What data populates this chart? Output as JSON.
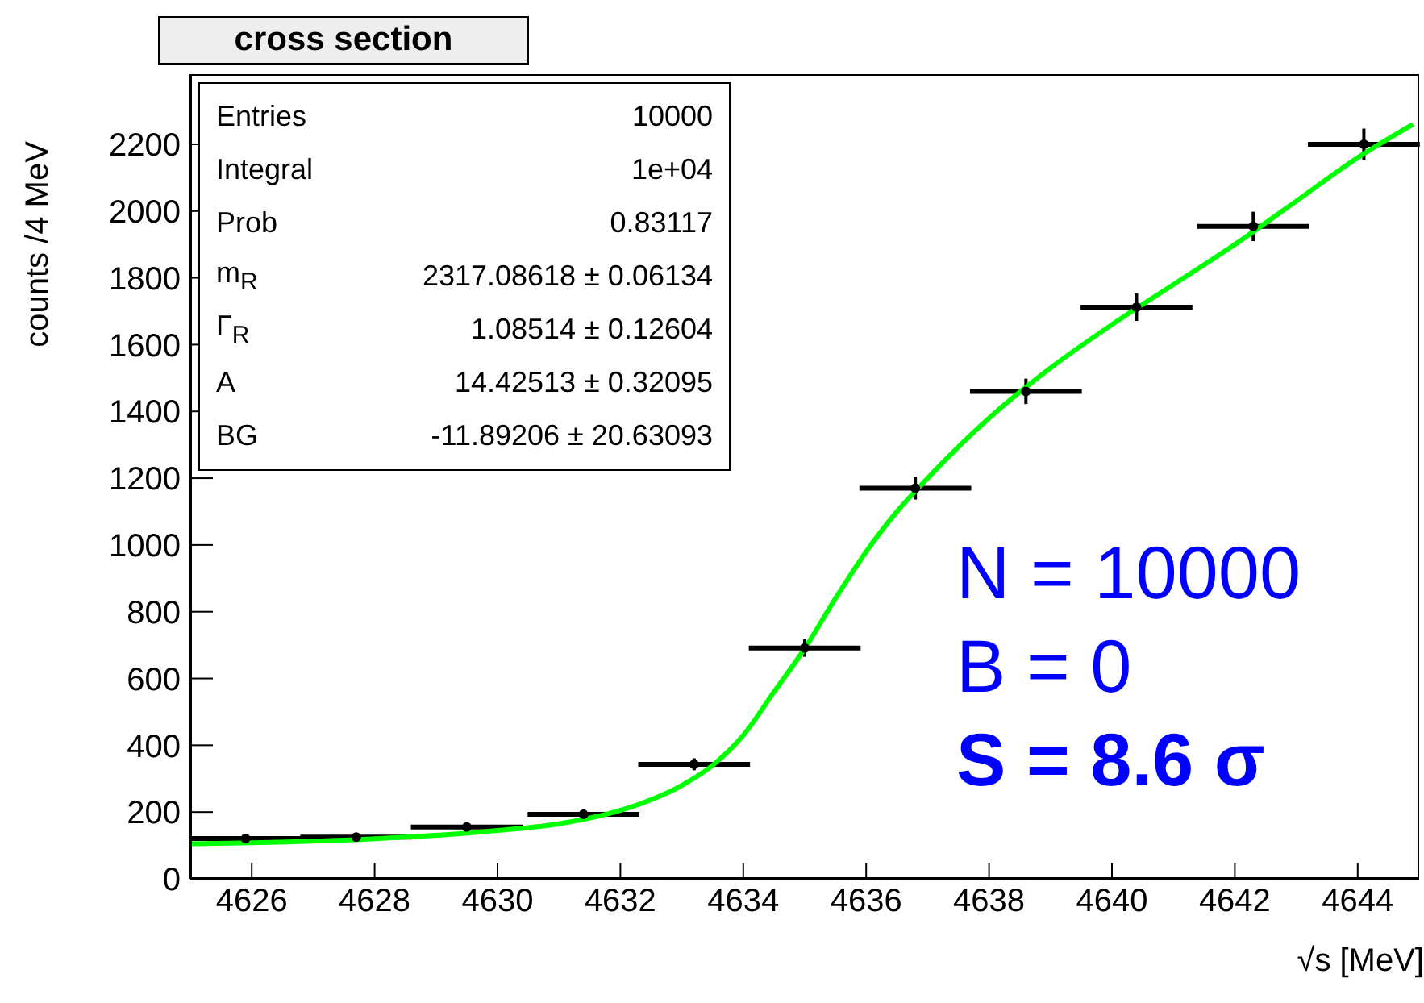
{
  "chart_data": {
    "type": "scatter",
    "title": "cross section",
    "xlabel": "√s [MeV]",
    "ylabel": "counts /4 MeV",
    "xlim": [
      4625,
      4645
    ],
    "xticks": [
      4626,
      4628,
      4630,
      4632,
      4634,
      4636,
      4638,
      4640,
      4642,
      4644
    ],
    "ylim": [
      0,
      2410
    ],
    "yticks": [
      0,
      200,
      400,
      600,
      800,
      1000,
      1200,
      1400,
      1600,
      1800,
      2000,
      2200
    ],
    "grid": false,
    "legend": false,
    "annotations": [
      "Entries",
      "10000",
      "Integral",
      "1e+04",
      "Prob",
      "0.83117",
      "m$_{R}$",
      "2317.08618 ± 0.06134",
      "Γ$_{R}$",
      "1.08514 ± 0.12604",
      "A",
      "14.42513 ± 0.32095",
      "BG",
      "-11.89206 ± 20.63093",
      "N = 10000",
      "B = 0",
      "S = 8.6 σ"
    ],
    "series": [
      {
        "color": "#000000",
        "x": [
          4625.9,
          4627.7,
          4629.5,
          4631.4,
          4633.2,
          4635.0,
          4636.8,
          4638.6,
          4640.4,
          4642.3,
          4644.1
        ],
        "values": [
          121,
          125,
          155,
          193,
          343,
          691,
          1170,
          1460,
          1712,
          1954,
          2200
        ],
        "errors": [
          11,
          11,
          12,
          14,
          18,
          26,
          34,
          38,
          41,
          44,
          47
        ],
        "xerrors": [
          0.91,
          0.91,
          0.91,
          0.91,
          0.91,
          0.91,
          0.91,
          0.91,
          0.91,
          0.91,
          0.91
        ]
      },
      {
        "type": "line",
        "color": "#00ff00",
        "x": [
          4625,
          4626,
          4628,
          4630,
          4631,
          4632,
          4633,
          4633.5,
          4634,
          4634.5,
          4635,
          4635.5,
          4636,
          4636.5,
          4637,
          4638,
          4639,
          4640,
          4641,
          4642,
          4643,
          4644,
          4644.9
        ],
        "values": [
          105,
          108,
          120,
          145,
          165,
          205,
          280,
          340,
          430,
          560,
          690,
          840,
          980,
          1100,
          1200,
          1380,
          1530,
          1660,
          1780,
          1900,
          2030,
          2160,
          2260
        ]
      }
    ]
  }
}
